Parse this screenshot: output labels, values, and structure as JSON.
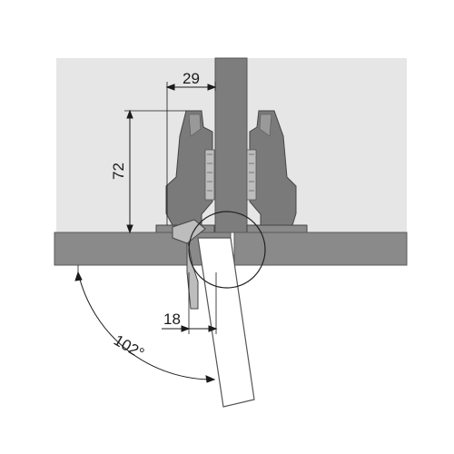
{
  "diagram": {
    "dimensions": {
      "width_top": "29",
      "height_left": "72",
      "offset_bottom": "18",
      "opening_angle": "102°"
    },
    "colors": {
      "background_panel": "#e6e6e6",
      "board": "#8a8a8a",
      "board_edge": "#5a5a5a",
      "hinge_body": "#7a7a7a",
      "hinge_dark": "#555555",
      "center_panel": "#7d7d7d",
      "line": "#1a1a1a"
    }
  }
}
